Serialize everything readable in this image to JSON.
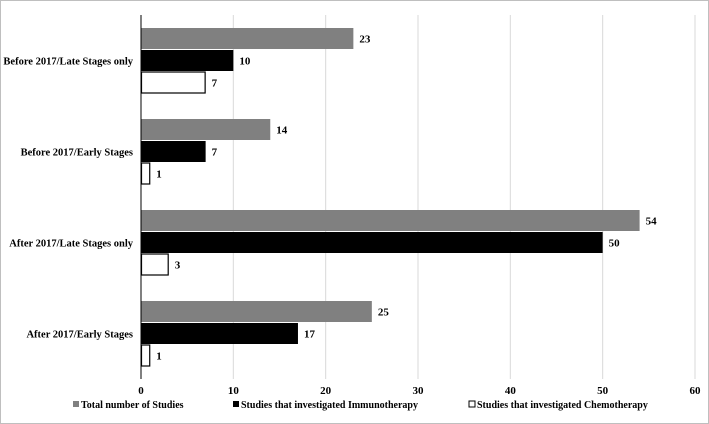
{
  "chart_data": {
    "type": "bar",
    "orientation": "horizontal",
    "title": "",
    "xlabel": "",
    "ylabel": "",
    "xlim": [
      0,
      60
    ],
    "x_ticks": [
      0,
      10,
      20,
      30,
      40,
      50,
      60
    ],
    "grid": "vertical gridlines",
    "legend_position": "bottom",
    "categories": [
      "Before 2017/Late Stages only",
      "Before 2017/Early Stages",
      "After 2017/Late Stages only",
      "After 2017/Early Stages"
    ],
    "series": [
      {
        "name": "Total number of Studies",
        "values": [
          23,
          14,
          54,
          25
        ],
        "color": "#808080"
      },
      {
        "name": "Studies that investigated Immunotherapy",
        "values": [
          10,
          7,
          50,
          17
        ],
        "color": "#000000"
      },
      {
        "name": "Studies that investigated Chemotherapy",
        "values": [
          7,
          1,
          3,
          1
        ],
        "color": "#ffffff"
      }
    ]
  }
}
